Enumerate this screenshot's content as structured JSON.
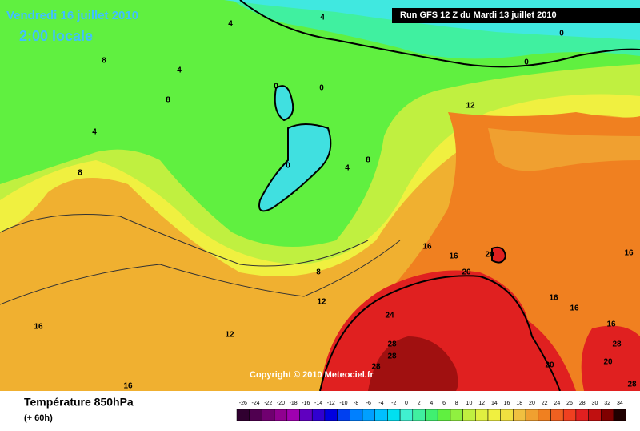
{
  "header": {
    "date": "Vendredi 16 juillet 2010",
    "time": "2:00 locale",
    "run": "Run GFS 12 Z du Mardi 13 juillet 2010"
  },
  "map": {
    "contour_labels": [
      4,
      4,
      0,
      8,
      4,
      0,
      0,
      0,
      8,
      12,
      4,
      0,
      8,
      4,
      8,
      16,
      16,
      20,
      16,
      8,
      20,
      16,
      12,
      16,
      24,
      16,
      12,
      16,
      28,
      28,
      28,
      28,
      20,
      20,
      16,
      28
    ],
    "copyright": "Copyright © 2010 Meteociel.fr"
  },
  "legend": {
    "title": "Température 850hPa",
    "subtitle": "(+ 60h)",
    "ticks": [
      -26,
      -24,
      -22,
      -20,
      -18,
      -16,
      -14,
      -12,
      -10,
      -8,
      -6,
      -4,
      -2,
      0,
      2,
      4,
      6,
      8,
      10,
      12,
      14,
      16,
      18,
      20,
      22,
      24,
      26,
      28,
      30,
      32,
      34
    ],
    "colors": [
      "#300030",
      "#500050",
      "#700070",
      "#900090",
      "#a000b0",
      "#6000c0",
      "#3000d0",
      "#0000e0",
      "#0040f0",
      "#0080ff",
      "#00a0ff",
      "#00c0ff",
      "#00e0f0",
      "#40f0d0",
      "#40f0a0",
      "#40f070",
      "#60f040",
      "#90f040",
      "#c0f040",
      "#e0f040",
      "#f0f040",
      "#f0e040",
      "#f0c040",
      "#f0a030",
      "#f08020",
      "#f06020",
      "#f04020",
      "#e02020",
      "#c01010",
      "#800000",
      "#200000"
    ]
  }
}
